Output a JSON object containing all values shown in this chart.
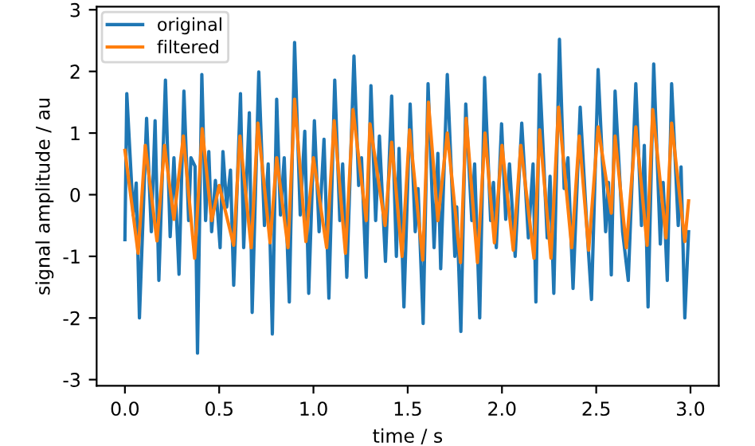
{
  "chart_data": {
    "type": "line",
    "xlabel": "time / s",
    "ylabel": "signal amplitude / au",
    "xlim": [
      -0.15,
      3.15
    ],
    "ylim": [
      -3.1,
      3.05
    ],
    "xticks": [
      {
        "value": 0,
        "label": "0.0"
      },
      0.5,
      {
        "value": 1,
        "label": "1.0"
      },
      1.5,
      {
        "value": 2,
        "label": "2.0"
      },
      2.5,
      {
        "value": 3,
        "label": "3.0"
      }
    ],
    "yticks": [
      -3,
      -2,
      -1,
      0,
      1,
      2,
      3
    ],
    "grid": false,
    "legend": "top left",
    "marker": "none",
    "line_style": "solid",
    "series": [
      {
        "name": "original",
        "color": "#1f77b4",
        "x": [
          0,
          0.01,
          0.044,
          0.06,
          0.077,
          0.115,
          0.14,
          0.16,
          0.18,
          0.215,
          0.24,
          0.26,
          0.287,
          0.313,
          0.338,
          0.35,
          0.372,
          0.385,
          0.408,
          0.428,
          0.445,
          0.46,
          0.48,
          0.505,
          0.52,
          0.54,
          0.56,
          0.577,
          0.613,
          0.63,
          0.66,
          0.675,
          0.71,
          0.74,
          0.76,
          0.782,
          0.805,
          0.825,
          0.845,
          0.872,
          0.9,
          0.93,
          0.954,
          0.975,
          1.005,
          1.03,
          1.056,
          1.082,
          1.113,
          1.14,
          1.155,
          1.177,
          1.215,
          1.24,
          1.255,
          1.28,
          1.305,
          1.33,
          1.35,
          1.382,
          1.415,
          1.44,
          1.454,
          1.48,
          1.513,
          1.54,
          1.555,
          1.582,
          1.608,
          1.64,
          1.66,
          1.675,
          1.71,
          1.75,
          1.76,
          1.782,
          1.808,
          1.84,
          1.855,
          1.882,
          1.908,
          1.94,
          1.955,
          1.97,
          1.998,
          2.02,
          2.04,
          2.07,
          2.105,
          2.14,
          2.165,
          2.18,
          2.2,
          2.24,
          2.255,
          2.275,
          2.305,
          2.33,
          2.35,
          2.377,
          2.415,
          2.45,
          2.475,
          2.51,
          2.55,
          2.565,
          2.58,
          2.6,
          2.64,
          2.67,
          2.71,
          2.74,
          2.755,
          2.775,
          2.805,
          2.84,
          2.855,
          2.877,
          2.9,
          2.935,
          2.95,
          2.97,
          2.99
        ],
        "values": [
          -0.73,
          1.64,
          -0.33,
          0.19,
          -2.0,
          1.24,
          -0.6,
          1.2,
          -1.39,
          1.86,
          -0.68,
          0.6,
          -1.29,
          1.68,
          -0.42,
          0.6,
          0.46,
          -2.57,
          1.95,
          -0.42,
          0.7,
          -0.6,
          0.23,
          -0.86,
          0.7,
          -0.2,
          0.4,
          -1.47,
          1.64,
          -0.86,
          1.33,
          -1.91,
          1.99,
          -0.5,
          0.5,
          -2.26,
          1.55,
          -0.33,
          0.6,
          -1.74,
          2.47,
          -0.33,
          1.03,
          -1.6,
          1.2,
          -0.6,
          0.9,
          -1.68,
          1.86,
          -0.42,
          0.5,
          -1.34,
          2.25,
          0.15,
          0.6,
          -1.34,
          1.77,
          -0.42,
          0.95,
          -1.08,
          1.6,
          -1.0,
          0.75,
          -1.82,
          1.47,
          -0.6,
          0.1,
          -2.09,
          1.8,
          -0.86,
          0.67,
          -1.2,
          1.95,
          -1.0,
          -0.2,
          -2.22,
          1.47,
          -0.42,
          0.5,
          -2.0,
          1.9,
          -0.42,
          0.2,
          -0.86,
          1.15,
          -0.4,
          0.5,
          -1.0,
          1.16,
          -0.7,
          0.5,
          -1.74,
          1.95,
          -0.7,
          0.3,
          -1.6,
          2.52,
          0.1,
          0.6,
          -1.52,
          1.42,
          -0.5,
          -1.7,
          2.03,
          -0.6,
          0.2,
          -1.3,
          1.68,
          -0.6,
          -1.39,
          1.8,
          -0.5,
          0.8,
          -1.82,
          2.12,
          -0.8,
          0.2,
          -1.39,
          1.8,
          -0.5,
          0.45,
          -2.0,
          -0.6
        ]
      },
      {
        "name": "filtered",
        "color": "#ff7f0e",
        "x": [
          0,
          0.07,
          0.108,
          0.17,
          0.21,
          0.26,
          0.31,
          0.37,
          0.41,
          0.46,
          0.5,
          0.577,
          0.61,
          0.67,
          0.705,
          0.77,
          0.805,
          0.865,
          0.9,
          0.96,
          1.0,
          1.07,
          1.11,
          1.17,
          1.21,
          1.28,
          1.3,
          1.38,
          1.415,
          1.47,
          1.51,
          1.58,
          1.61,
          1.66,
          1.71,
          1.78,
          1.81,
          1.87,
          1.91,
          1.96,
          2.0,
          2.06,
          2.1,
          2.17,
          2.2,
          2.26,
          2.3,
          2.37,
          2.41,
          2.46,
          2.51,
          2.58,
          2.6,
          2.66,
          2.71,
          2.77,
          2.8,
          2.87,
          2.9,
          2.97,
          2.99
        ],
        "values": [
          0.72,
          -0.95,
          0.8,
          -0.75,
          0.8,
          -0.4,
          0.95,
          -1.03,
          1.07,
          -0.42,
          0.15,
          -0.82,
          0.95,
          -0.86,
          1.16,
          -0.78,
          0.6,
          -0.86,
          1.55,
          -0.76,
          0.6,
          -0.86,
          1.2,
          -0.95,
          1.38,
          -0.42,
          1.15,
          -0.5,
          0.85,
          -1.0,
          1.05,
          -1.06,
          1.5,
          -0.42,
          1.0,
          -1.1,
          1.24,
          -1.1,
          1.0,
          -0.78,
          0.8,
          -0.9,
          0.8,
          -1.03,
          1.05,
          -1.03,
          1.42,
          -0.86,
          0.95,
          -0.9,
          1.1,
          -0.3,
          0.95,
          -0.86,
          1.1,
          -0.82,
          1.38,
          -0.7,
          1.16,
          -0.76,
          -0.1
        ]
      }
    ]
  }
}
